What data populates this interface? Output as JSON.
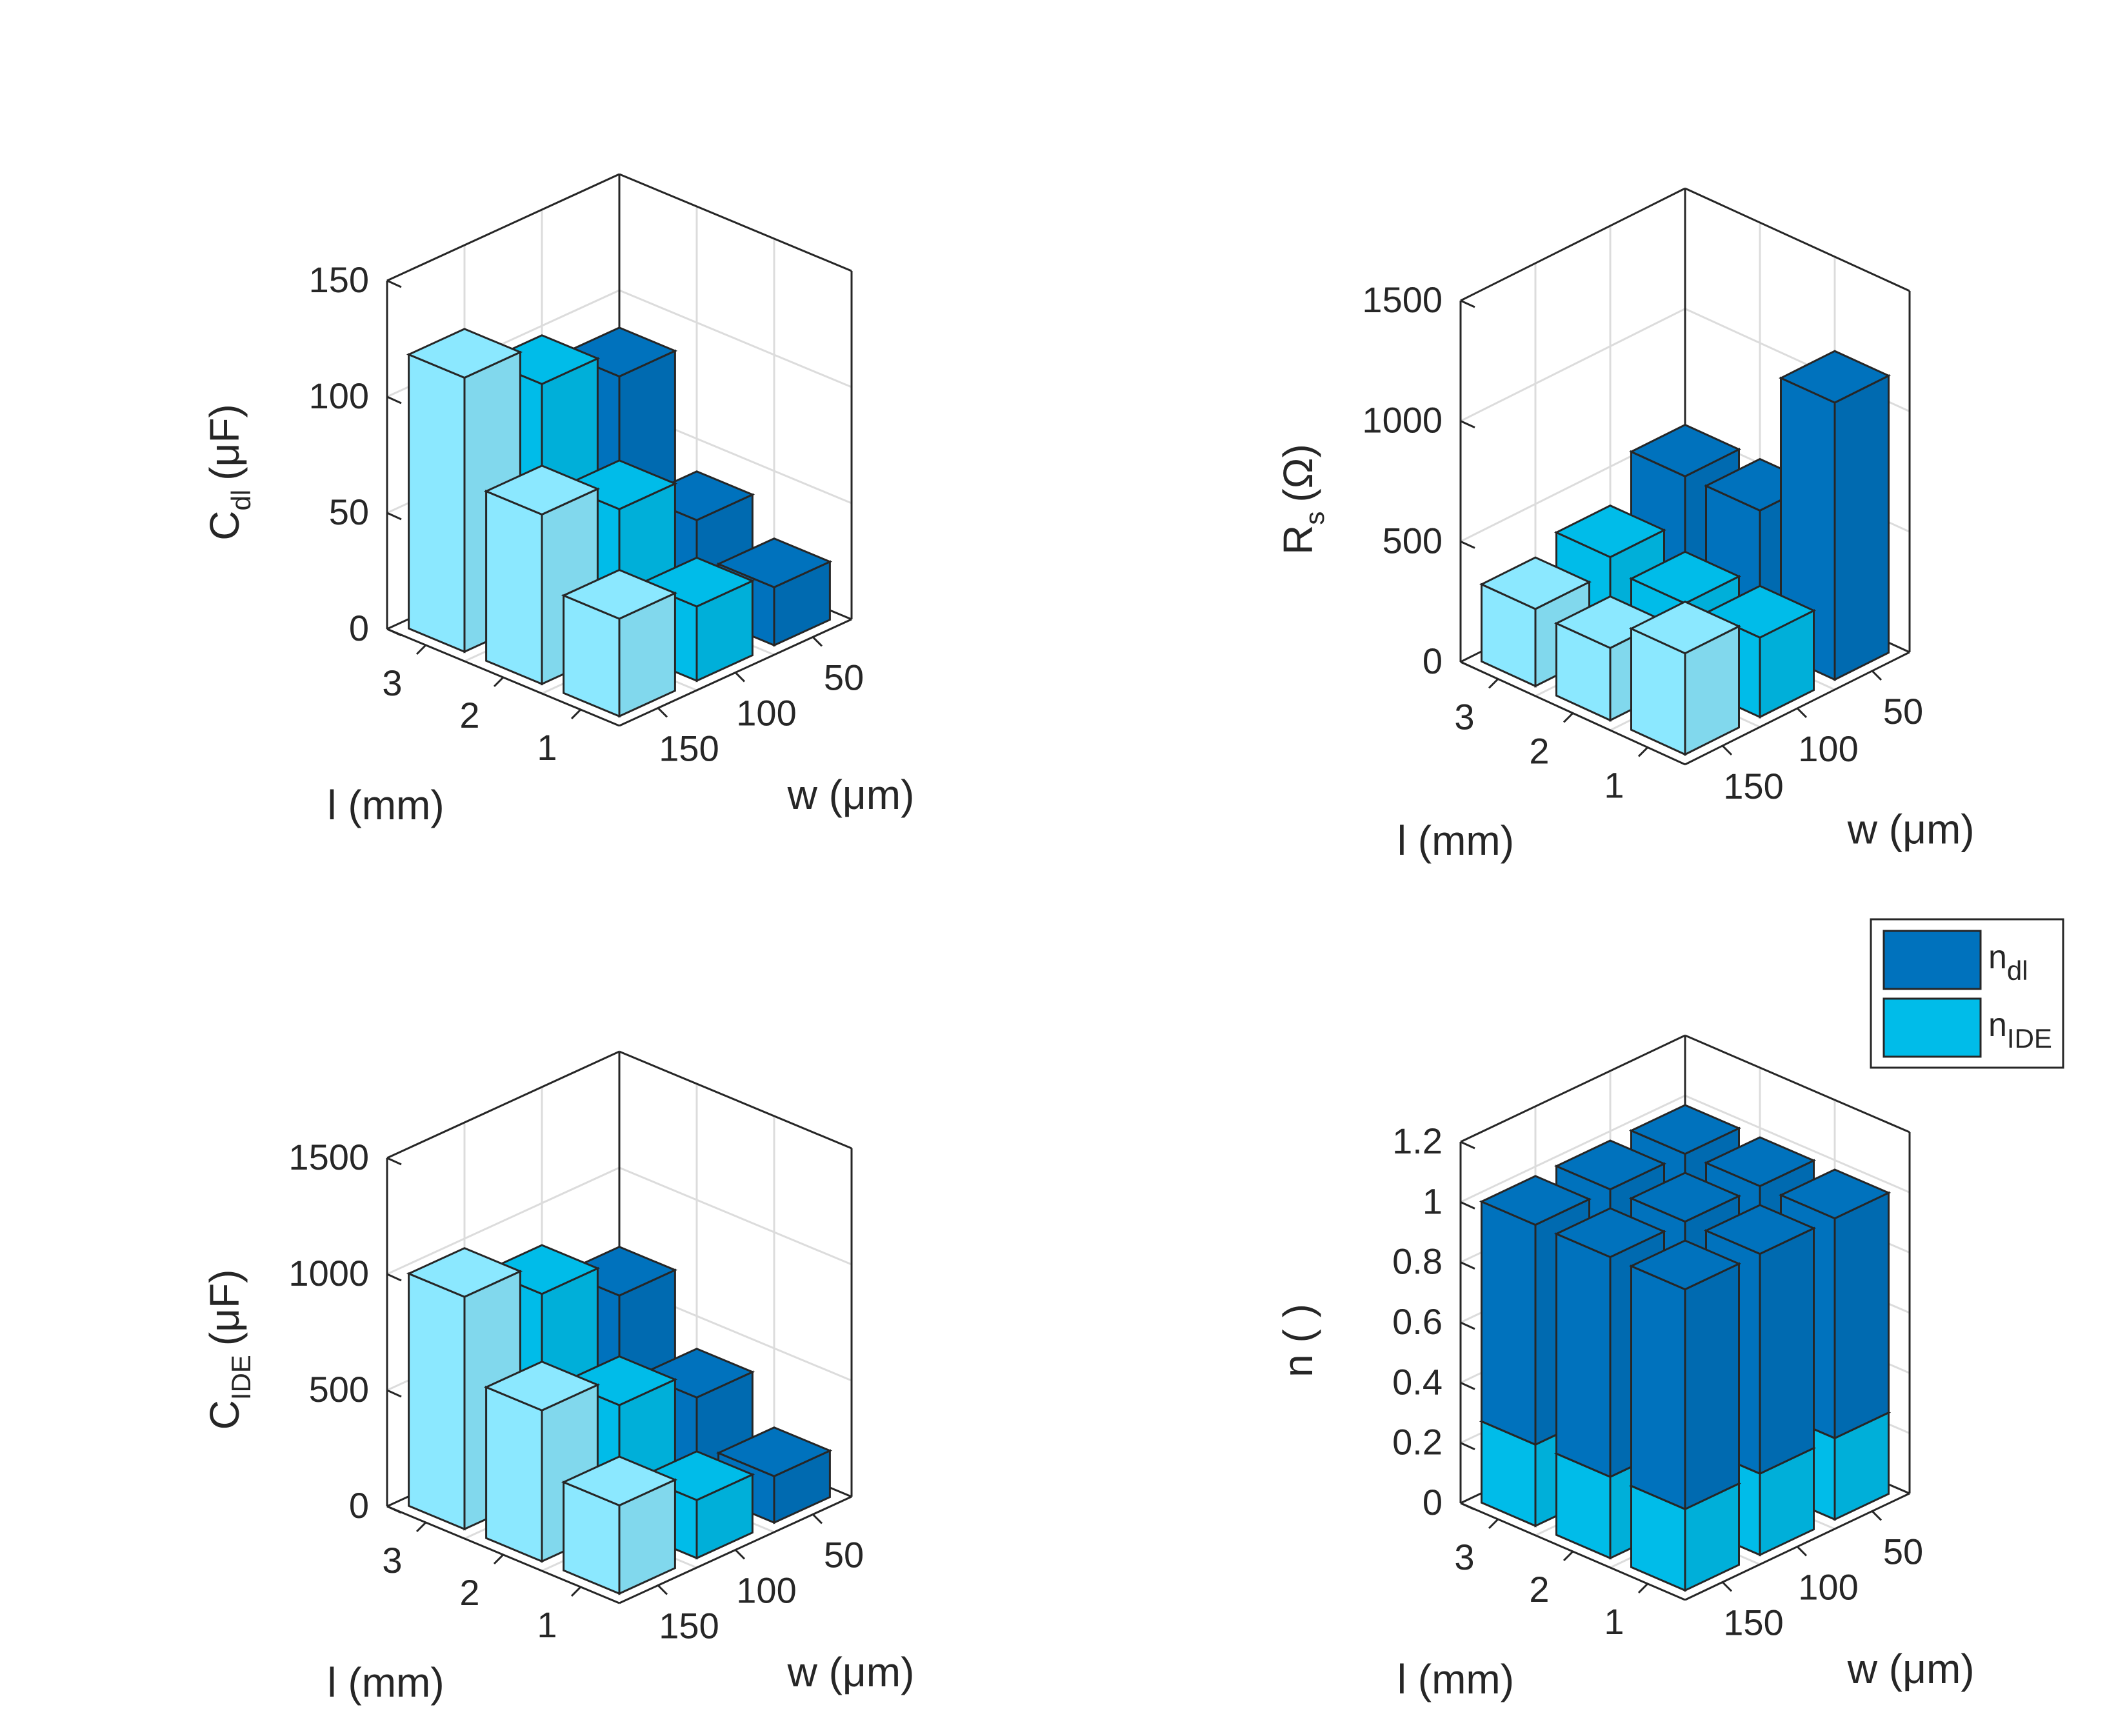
{
  "figure": {
    "description_free": true
  },
  "colors": {
    "dark": "#0072bd",
    "mid": "#00bce9",
    "light": "#8be8ff",
    "edge": "#262626",
    "axis": "#262626",
    "grid": "#dcdcdc"
  },
  "chart_data": [
    {
      "type": "bar3",
      "panel": "top-left",
      "zlabel": {
        "main": "C",
        "sub": "dl",
        "unit": "(μF)"
      },
      "xlabel": "l (mm)",
      "ylabel": "w (μm)",
      "x_categories": [
        "1",
        "2",
        "3"
      ],
      "y_categories": [
        "150",
        "100",
        "50"
      ],
      "zticks": [
        "0",
        "50",
        "100",
        "150"
      ],
      "zlim": [
        0,
        150
      ],
      "series_color_by_w": {
        "150": "light",
        "100": "mid",
        "50": "dark"
      },
      "values": [
        {
          "l": "3",
          "w": "150",
          "value": 118
        },
        {
          "l": "3",
          "w": "100",
          "value": 100
        },
        {
          "l": "3",
          "w": "50",
          "value": 88
        },
        {
          "l": "2",
          "w": "150",
          "value": 73
        },
        {
          "l": "2",
          "w": "100",
          "value": 60
        },
        {
          "l": "2",
          "w": "50",
          "value": 40
        },
        {
          "l": "1",
          "w": "150",
          "value": 42
        },
        {
          "l": "1",
          "w": "100",
          "value": 32
        },
        {
          "l": "1",
          "w": "50",
          "value": 25
        }
      ]
    },
    {
      "type": "bar3",
      "panel": "top-right",
      "zlabel": {
        "main": "R",
        "sub": "s",
        "unit": "(Ω)"
      },
      "xlabel": "l (mm)",
      "ylabel": "w (μm)",
      "x_categories": [
        "1",
        "2",
        "3"
      ],
      "y_categories": [
        "150",
        "100",
        "50"
      ],
      "zticks": [
        "0",
        "500",
        "1000",
        "1500"
      ],
      "zlim": [
        0,
        1500
      ],
      "series_color_by_w": {
        "150": "light",
        "100": "mid",
        "50": "dark"
      },
      "values": [
        {
          "l": "3",
          "w": "150",
          "value": 320
        },
        {
          "l": "3",
          "w": "100",
          "value": 380
        },
        {
          "l": "3",
          "w": "50",
          "value": 560
        },
        {
          "l": "2",
          "w": "150",
          "value": 300
        },
        {
          "l": "2",
          "w": "100",
          "value": 330
        },
        {
          "l": "2",
          "w": "50",
          "value": 560
        },
        {
          "l": "1",
          "w": "150",
          "value": 420
        },
        {
          "l": "1",
          "w": "100",
          "value": 330
        },
        {
          "l": "1",
          "w": "50",
          "value": 1150
        }
      ]
    },
    {
      "type": "bar3",
      "panel": "bottom-left",
      "zlabel": {
        "main": "C",
        "sub": "IDE",
        "unit": "(μF)"
      },
      "xlabel": "l (mm)",
      "ylabel": "w (μm)",
      "x_categories": [
        "1",
        "2",
        "3"
      ],
      "y_categories": [
        "150",
        "100",
        "50"
      ],
      "zticks": [
        "0",
        "500",
        "1000",
        "1500"
      ],
      "zlim": [
        0,
        1500
      ],
      "series_color_by_w": {
        "150": "light",
        "100": "mid",
        "50": "dark"
      },
      "values": [
        {
          "l": "3",
          "w": "150",
          "value": 1000
        },
        {
          "l": "3",
          "w": "100",
          "value": 860
        },
        {
          "l": "3",
          "w": "50",
          "value": 700
        },
        {
          "l": "2",
          "w": "150",
          "value": 650
        },
        {
          "l": "2",
          "w": "100",
          "value": 520
        },
        {
          "l": "2",
          "w": "50",
          "value": 400
        },
        {
          "l": "1",
          "w": "150",
          "value": 380
        },
        {
          "l": "1",
          "w": "100",
          "value": 250
        },
        {
          "l": "1",
          "w": "50",
          "value": 200
        }
      ]
    },
    {
      "type": "bar3-stacked",
      "panel": "bottom-right",
      "zlabel": {
        "main": "n ( )",
        "sub": "",
        "unit": ""
      },
      "xlabel": "l (mm)",
      "ylabel": "w (μm)",
      "x_categories": [
        "1",
        "2",
        "3"
      ],
      "y_categories": [
        "150",
        "100",
        "50"
      ],
      "zticks": [
        "0",
        "0.2",
        "0.4",
        "0.6",
        "0.8",
        "1",
        "1.2"
      ],
      "zlim": [
        0,
        1.2
      ],
      "series": [
        {
          "name": "n_dl",
          "main": "n",
          "sub": "dl",
          "color": "dark"
        },
        {
          "name": "n_IDE",
          "main": "n",
          "sub": "IDE",
          "color": "mid"
        }
      ],
      "legend_position": "top-right",
      "values": [
        {
          "l": "3",
          "w": "150",
          "n_IDE": 0.27,
          "n_dl": 0.73
        },
        {
          "l": "3",
          "w": "100",
          "n_IDE": 0.27,
          "n_dl": 0.73
        },
        {
          "l": "3",
          "w": "50",
          "n_IDE": 0.27,
          "n_dl": 0.73
        },
        {
          "l": "2",
          "w": "150",
          "n_IDE": 0.27,
          "n_dl": 0.73
        },
        {
          "l": "2",
          "w": "100",
          "n_IDE": 0.27,
          "n_dl": 0.73
        },
        {
          "l": "2",
          "w": "50",
          "n_IDE": 0.27,
          "n_dl": 0.73
        },
        {
          "l": "1",
          "w": "150",
          "n_IDE": 0.27,
          "n_dl": 0.73
        },
        {
          "l": "1",
          "w": "100",
          "n_IDE": 0.27,
          "n_dl": 0.73
        },
        {
          "l": "1",
          "w": "50",
          "n_IDE": 0.27,
          "n_dl": 0.73
        }
      ]
    }
  ]
}
